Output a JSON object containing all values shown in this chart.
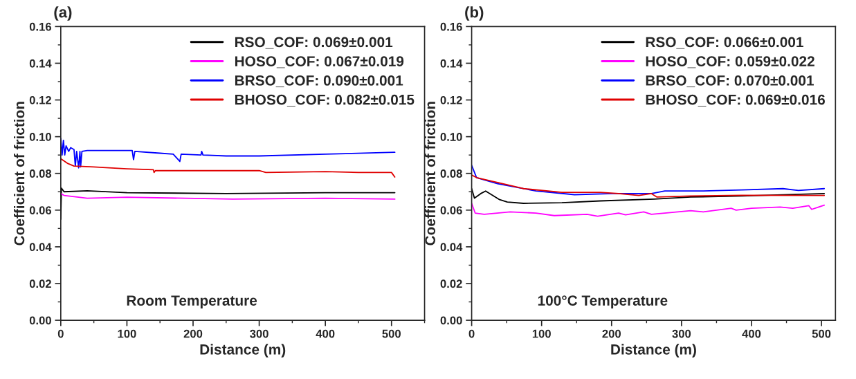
{
  "chart_data": [
    {
      "type": "line",
      "title": "(a)",
      "xlabel": "Distance (m)",
      "ylabel": "Coefficient of friction",
      "annotations": [
        "Room Temperature"
      ],
      "xlim": [
        0,
        550
      ],
      "xticks": [
        0,
        100,
        200,
        300,
        400,
        500
      ],
      "ylim": [
        0,
        0.16
      ],
      "yticks": [
        {
          "value": 0,
          "label": "0.00"
        },
        {
          "value": 0.02,
          "label": "0.02"
        },
        {
          "value": 0.04,
          "label": "0.04"
        },
        {
          "value": 0.06,
          "label": "0.06"
        },
        {
          "value": 0.08,
          "label": "0.08"
        },
        {
          "value": 0.1,
          "label": "0.10"
        },
        {
          "value": 0.12,
          "label": "0.12"
        },
        {
          "value": 0.14,
          "label": "0.14"
        },
        {
          "value": 0.16,
          "label": "0.16"
        }
      ],
      "legend": "top right",
      "grid": false,
      "line_style": "solid",
      "series": [
        {
          "name": "RSO_COF: 0.069±0.001",
          "color": "#000000",
          "x": [
            0,
            1,
            5,
            40,
            100,
            250,
            400,
            505
          ],
          "values": [
            0.055,
            0.072,
            0.07,
            0.0705,
            0.0695,
            0.069,
            0.0695,
            0.0695
          ]
        },
        {
          "name": "HOSO_COF: 0.067±0.019",
          "color": "#ff00ff",
          "x": [
            0,
            5,
            40,
            100,
            260,
            400,
            505
          ],
          "values": [
            0.069,
            0.068,
            0.0665,
            0.067,
            0.066,
            0.0665,
            0.066
          ]
        },
        {
          "name": "BRSO_COF: 0.090±0.001",
          "color": "#0000ff",
          "x": [
            0,
            2,
            4,
            6,
            8,
            12,
            15,
            20,
            22,
            24,
            27,
            29,
            30,
            32,
            40,
            100,
            108,
            110,
            112,
            150,
            170,
            180,
            182,
            212,
            213,
            215,
            250,
            300,
            400,
            505
          ],
          "values": [
            0.099,
            0.09,
            0.098,
            0.09,
            0.095,
            0.092,
            0.094,
            0.093,
            0.084,
            0.092,
            0.083,
            0.092,
            0.0835,
            0.092,
            0.0925,
            0.0925,
            0.0925,
            0.0875,
            0.092,
            0.091,
            0.0905,
            0.0865,
            0.0905,
            0.09,
            0.092,
            0.09,
            0.0895,
            0.0895,
            0.0905,
            0.0915
          ]
        },
        {
          "name": "BHOSO_COF: 0.082±0.015",
          "color": "#e00000",
          "x": [
            0,
            10,
            20,
            50,
            100,
            140,
            141,
            143,
            200,
            300,
            310,
            400,
            450,
            500,
            505
          ],
          "values": [
            0.088,
            0.0855,
            0.084,
            0.0835,
            0.0825,
            0.082,
            0.0805,
            0.0815,
            0.0815,
            0.0815,
            0.0805,
            0.081,
            0.0805,
            0.0805,
            0.078
          ]
        }
      ]
    },
    {
      "type": "line",
      "title": "(b)",
      "xlabel": "Distance (m)",
      "ylabel": "Coefficient of friction",
      "annotations": [
        "100°C Temperature"
      ],
      "xlim": [
        0,
        520
      ],
      "xticks": [
        0,
        100,
        200,
        300,
        400,
        500
      ],
      "ylim": [
        0,
        0.16
      ],
      "yticks": [
        {
          "value": 0,
          "label": "0.00"
        },
        {
          "value": 0.02,
          "label": "0.02"
        },
        {
          "value": 0.04,
          "label": "0.04"
        },
        {
          "value": 0.06,
          "label": "0.06"
        },
        {
          "value": 0.08,
          "label": "0.08"
        },
        {
          "value": 0.1,
          "label": "0.10"
        },
        {
          "value": 0.12,
          "label": "0.12"
        },
        {
          "value": 0.14,
          "label": "0.14"
        },
        {
          "value": 0.16,
          "label": "0.16"
        }
      ],
      "legend": "top right",
      "grid": false,
      "line_style": "solid",
      "series": [
        {
          "name": "RSO_COF: 0.066±0.001",
          "color": "#000000",
          "x": [
            0,
            4,
            13,
            20,
            40,
            51,
            74,
            129,
            184,
            261,
            313,
            386,
            504
          ],
          "values": [
            0.0717,
            0.0665,
            0.069,
            0.0704,
            0.0657,
            0.0644,
            0.0637,
            0.064,
            0.065,
            0.066,
            0.0671,
            0.0677,
            0.069
          ]
        },
        {
          "name": "HOSO_COF: 0.059±0.022",
          "color": "#ff00ff",
          "x": [
            0,
            5,
            18,
            55,
            92,
            118,
            165,
            180,
            210,
            220,
            246,
            257,
            276,
            313,
            331,
            371,
            378,
            400,
            441,
            459,
            482,
            486,
            496,
            504
          ],
          "values": [
            0.0637,
            0.0584,
            0.0577,
            0.059,
            0.0584,
            0.057,
            0.0577,
            0.0567,
            0.0584,
            0.0574,
            0.059,
            0.0577,
            0.0584,
            0.0597,
            0.059,
            0.061,
            0.06,
            0.061,
            0.0617,
            0.061,
            0.0624,
            0.0604,
            0.0617,
            0.0627
          ]
        },
        {
          "name": "BRSO_COF: 0.070±0.001",
          "color": "#0000ff",
          "x": [
            0,
            7,
            37,
            92,
            147,
            202,
            257,
            276,
            331,
            386,
            445,
            467,
            504
          ],
          "values": [
            0.0844,
            0.0777,
            0.0744,
            0.0704,
            0.0684,
            0.069,
            0.069,
            0.0704,
            0.0704,
            0.071,
            0.0717,
            0.0707,
            0.0717
          ]
        },
        {
          "name": "BHOSO_COF: 0.069±0.016",
          "color": "#e00000",
          "x": [
            0,
            7,
            37,
            74,
            129,
            184,
            210,
            239,
            257,
            265,
            313,
            386,
            504
          ],
          "values": [
            0.0791,
            0.0777,
            0.075,
            0.0717,
            0.0697,
            0.0697,
            0.069,
            0.068,
            0.069,
            0.0671,
            0.0677,
            0.0681,
            0.068
          ]
        }
      ]
    }
  ]
}
